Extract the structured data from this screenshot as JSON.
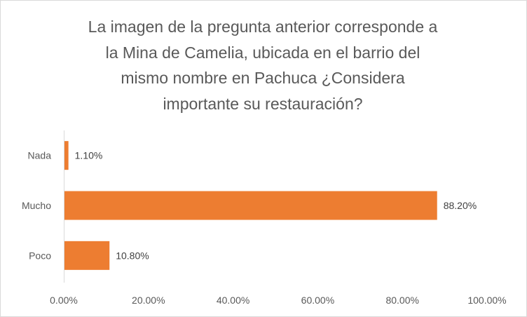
{
  "chart_data": {
    "type": "bar",
    "orientation": "horizontal",
    "title_lines": [
      "La imagen de la pregunta anterior corresponde  a",
      "la Mina de Camelia, ubicada en el barrio del",
      "mismo nombre en Pachuca ¿Considera",
      "importante su restauración?"
    ],
    "categories": [
      "Nada",
      "Mucho",
      "Poco"
    ],
    "values": [
      1.1,
      88.2,
      10.8
    ],
    "data_labels": [
      "1.10%",
      "88.20%",
      "10.80%"
    ],
    "x_ticks": [
      "0.00%",
      "20.00%",
      "40.00%",
      "60.00%",
      "80.00%",
      "100.00%"
    ],
    "xlim": [
      0,
      100
    ],
    "xlabel": "",
    "ylabel": "",
    "grid": false,
    "legend": "none",
    "bar_color": "#ED7D31"
  }
}
